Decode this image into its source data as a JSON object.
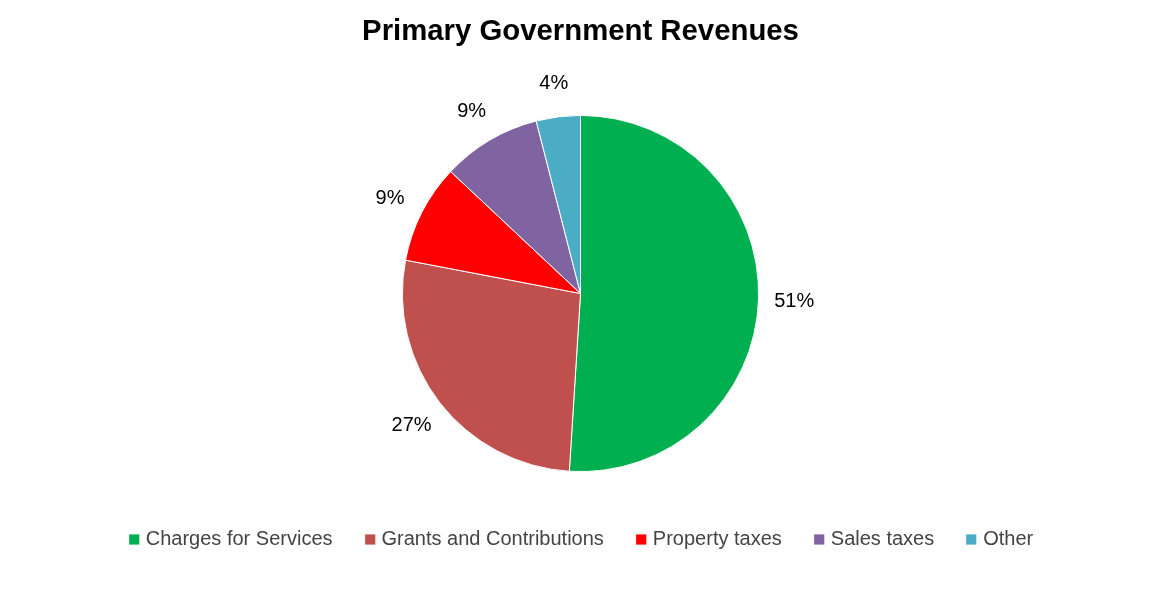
{
  "chart_data": {
    "type": "pie",
    "title": "Primary Government Revenues",
    "categories": [
      "Charges for Services",
      "Grants and Contributions",
      "Property taxes",
      "Sales taxes",
      "Other"
    ],
    "values": [
      51,
      27,
      9,
      9,
      4
    ],
    "colors": [
      "#00b050",
      "#c0504d",
      "#ff0000",
      "#8064a2",
      "#4bacc6"
    ],
    "value_labels": [
      "51%",
      "27%",
      "9%",
      "9%",
      "4%"
    ],
    "legend": "bottom"
  }
}
